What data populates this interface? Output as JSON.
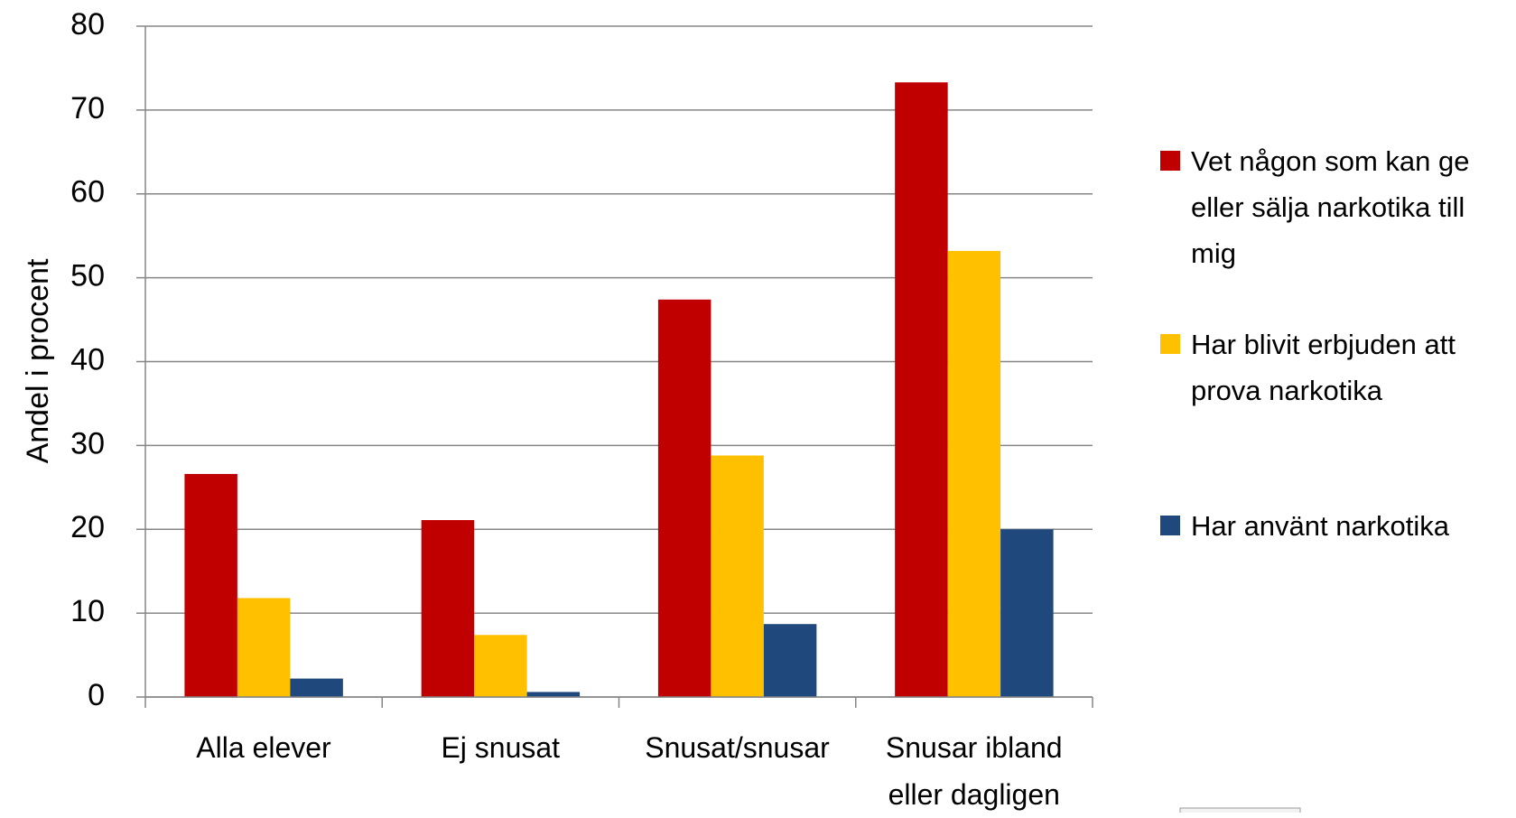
{
  "chart_data": {
    "type": "bar",
    "y_label": "Andel i procent",
    "categories": [
      "Alla elever",
      "Ej snusat",
      "Snusat/snusar",
      "Snusar ibland eller dagligen"
    ],
    "series": [
      {
        "name": "Vet någon som kan ge eller sälja narkotika till mig",
        "color": "#c00000",
        "values": [
          26.6,
          21.1,
          47.4,
          73.3
        ]
      },
      {
        "name": "Har blivit erbjuden att prova narkotika",
        "color": "#ffc000",
        "values": [
          11.8,
          7.4,
          28.8,
          53.2
        ]
      },
      {
        "name": "Har använt narkotika",
        "color": "#1f497d",
        "values": [
          2.2,
          0.6,
          8.7,
          20.0
        ]
      }
    ],
    "ylim": [
      0,
      80
    ],
    "yticks": [
      0,
      10,
      20,
      30,
      40,
      50,
      60,
      70,
      80
    ],
    "grid": true,
    "legend": "right"
  }
}
